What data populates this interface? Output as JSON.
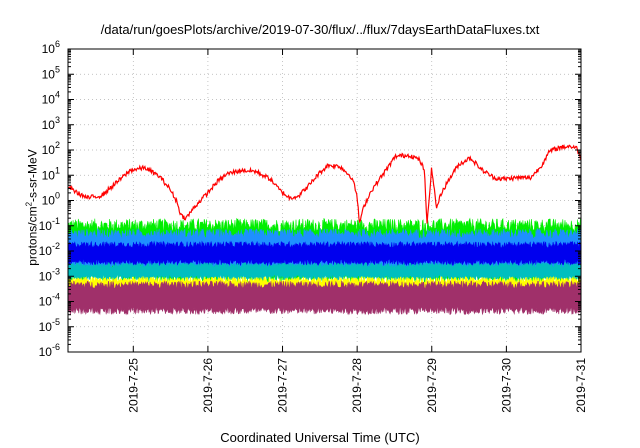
{
  "chart_data": {
    "type": "line",
    "title": "/data/run/goesPlots/archive/2019-07-30/flux/../flux/7daysEarthDataFluxes.txt",
    "xlabel": "Coordinated Universal Time (UTC)",
    "ylabel_parts": [
      "protons/cm",
      "2",
      "-s-sr-MeV"
    ],
    "y_scale": "log",
    "ylim": [
      1e-06,
      1000000.0
    ],
    "y_ticks": [
      {
        "value": -6,
        "base": "10",
        "exp": "-6"
      },
      {
        "value": -5,
        "base": "10",
        "exp": "-5"
      },
      {
        "value": -4,
        "base": "10",
        "exp": "-4"
      },
      {
        "value": -3,
        "base": "10",
        "exp": "-3"
      },
      {
        "value": -2,
        "base": "10",
        "exp": "-2"
      },
      {
        "value": -1,
        "base": "10",
        "exp": "-1"
      },
      {
        "value": 0,
        "base": "10",
        "exp": "0"
      },
      {
        "value": 1,
        "base": "10",
        "exp": "1"
      },
      {
        "value": 2,
        "base": "10",
        "exp": "2"
      },
      {
        "value": 3,
        "base": "10",
        "exp": "3"
      },
      {
        "value": 4,
        "base": "10",
        "exp": "4"
      },
      {
        "value": 5,
        "base": "10",
        "exp": "5"
      },
      {
        "value": 6,
        "base": "10",
        "exp": "6"
      }
    ],
    "x_range": [
      "2019-07-24T03:00",
      "2019-07-31T00:00"
    ],
    "x_ticks": [
      "2019-7-25",
      "2019-7-26",
      "2019-7-27",
      "2019-7-28",
      "2019-7-29",
      "2019-7-30",
      "2019-7-31"
    ],
    "grid": true,
    "series": [
      {
        "color": "#ff0000",
        "log10_values": [
          {
            "x": 0.0,
            "y": 0.55
          },
          {
            "x": 0.1,
            "y": 0.3
          },
          {
            "x": 0.2,
            "y": 0.1
          },
          {
            "x": 0.35,
            "y": 0.2
          },
          {
            "x": 0.5,
            "y": 0.7
          },
          {
            "x": 0.65,
            "y": 1.2
          },
          {
            "x": 0.8,
            "y": 1.3
          },
          {
            "x": 0.95,
            "y": 0.95
          },
          {
            "x": 1.05,
            "y": 0.5
          },
          {
            "x": 1.125,
            "y": 0.0
          },
          {
            "x": 1.175,
            "y": -0.6
          },
          {
            "x": 1.225,
            "y": -0.7
          },
          {
            "x": 1.325,
            "y": -0.2
          },
          {
            "x": 1.45,
            "y": 0.3
          },
          {
            "x": 1.55,
            "y": 0.75
          },
          {
            "x": 1.65,
            "y": 1.05
          },
          {
            "x": 1.8,
            "y": 1.2
          },
          {
            "x": 1.95,
            "y": 1.15
          },
          {
            "x": 2.1,
            "y": 0.85
          },
          {
            "x": 2.2,
            "y": 0.4
          },
          {
            "x": 2.3,
            "y": 0.1
          },
          {
            "x": 2.4,
            "y": 0.2
          },
          {
            "x": 2.5,
            "y": 0.6
          },
          {
            "x": 2.6,
            "y": 1.05
          },
          {
            "x": 2.7,
            "y": 1.4
          },
          {
            "x": 2.825,
            "y": 1.35
          },
          {
            "x": 2.95,
            "y": 0.9
          },
          {
            "x": 3.0,
            "y": 0.2
          },
          {
            "x": 3.025,
            "y": -0.9
          },
          {
            "x": 3.075,
            "y": -0.2
          },
          {
            "x": 3.15,
            "y": 0.4
          },
          {
            "x": 3.3,
            "y": 1.2
          },
          {
            "x": 3.4,
            "y": 1.75
          },
          {
            "x": 3.55,
            "y": 1.8
          },
          {
            "x": 3.65,
            "y": 1.6
          },
          {
            "x": 3.7,
            "y": 1.2
          },
          {
            "x": 3.725,
            "y": -1.0
          },
          {
            "x": 3.775,
            "y": 1.3
          },
          {
            "x": 3.825,
            "y": -0.3
          },
          {
            "x": 3.875,
            "y": 0.3
          },
          {
            "x": 3.95,
            "y": 0.8
          },
          {
            "x": 4.05,
            "y": 1.4
          },
          {
            "x": 4.175,
            "y": 1.7
          },
          {
            "x": 4.3,
            "y": 1.2
          },
          {
            "x": 4.425,
            "y": 0.9
          },
          {
            "x": 4.525,
            "y": 0.85
          },
          {
            "x": 4.65,
            "y": 0.9
          },
          {
            "x": 4.8,
            "y": 0.9
          },
          {
            "x": 4.9,
            "y": 1.3
          },
          {
            "x": 5.0,
            "y": 1.95
          },
          {
            "x": 5.1,
            "y": 2.1
          },
          {
            "x": 5.2,
            "y": 2.15
          },
          {
            "x": 5.275,
            "y": 2.1
          },
          {
            "x": 5.325,
            "y": 1.7
          }
        ]
      },
      {
        "color": "#00ee00",
        "band_log10": [
          -2.9,
          -1.1
        ],
        "noise": 0.55
      },
      {
        "color": "#1e90ff",
        "band_log10": [
          -2.6,
          -1.4
        ],
        "noise": 0.4
      },
      {
        "color": "#0000ee",
        "band_log10": [
          -2.4,
          -1.8
        ],
        "noise": 0.25
      },
      {
        "color": "#00bfbf",
        "band_log10": [
          -3.0,
          -2.6
        ],
        "noise": 0.2
      },
      {
        "color": "#ffff00",
        "band_log10": [
          -3.8,
          -3.2
        ],
        "noise": 0.25
      },
      {
        "color": "#a0306a",
        "band_log10": [
          -4.3,
          -3.4
        ],
        "noise": 0.3
      }
    ]
  }
}
